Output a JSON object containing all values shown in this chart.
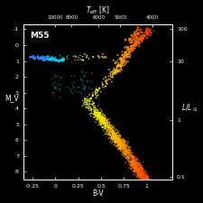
{
  "title": "M55",
  "xlabel_bottom": "B-V",
  "xlabel_top": "T_eff [K]",
  "ylabel_left": "M_V",
  "ylabel_right": "L / L_o",
  "xlim": [
    -0.35,
    1.28
  ],
  "ylim": [
    8.5,
    -1.3
  ],
  "teff_ticks": [
    10000,
    8000,
    6000,
    5000,
    4000
  ],
  "bv_ticks": [
    -0.25,
    0,
    0.25,
    0.5,
    0.75,
    1.0
  ],
  "mv_ticks": [
    -1,
    0,
    1,
    2,
    3,
    4,
    5,
    6,
    7,
    8
  ],
  "lum_ticks": [
    100,
    10,
    1,
    0.1
  ],
  "lum_mv": [
    -1.0,
    1.0,
    4.7,
    8.3
  ],
  "background": "#000000",
  "text_color": "#ffffff",
  "figsize": [
    2.25,
    2.25
  ],
  "dpi": 100
}
